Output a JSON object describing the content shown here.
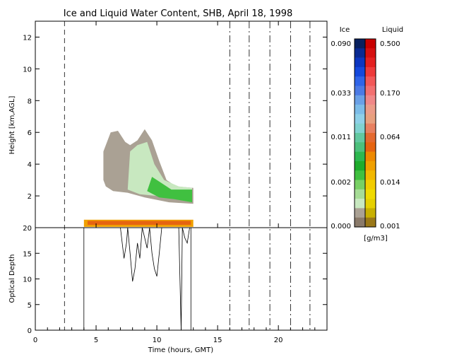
{
  "title": "Ice and Liquid Water Content, SHB, April 18, 1998",
  "top_panel": {
    "ylabel": "Height [km,AGL]",
    "yticks": [
      "2",
      "4",
      "6",
      "8",
      "10",
      "12"
    ]
  },
  "bottom_panel": {
    "ylabel": "Optical Depth",
    "yticks": [
      "0",
      "5",
      "10",
      "15",
      "20"
    ]
  },
  "xaxis": {
    "label": "Time (hours, GMT)",
    "ticks": [
      "0",
      "5",
      "10",
      "15",
      "20"
    ]
  },
  "colorbar": {
    "ice_header": "Ice",
    "liquid_header": "Liquid",
    "units": "[g/m3]",
    "ice_labels": [
      "0.090",
      "0.033",
      "0.011",
      "0.002",
      "0.000"
    ],
    "liquid_labels": [
      "0.500",
      "0.170",
      "0.064",
      "0.014",
      "0.001"
    ],
    "ice_colors": [
      "#08205e",
      "#0a2a92",
      "#0c36c0",
      "#1448dc",
      "#2f64e8",
      "#4c7ae4",
      "#6aa0e6",
      "#7cbce8",
      "#8ed0e8",
      "#80d2d0",
      "#62c8a0",
      "#4cc07c",
      "#2db850",
      "#1eac2c",
      "#40c040",
      "#78d064",
      "#a6dc96",
      "#c8e8c0",
      "#aaa194",
      "#8a7a6a"
    ],
    "liquid_colors": [
      "#c80000",
      "#d61010",
      "#e42020",
      "#ee3a3a",
      "#f25858",
      "#f27070",
      "#f08888",
      "#ec9c88",
      "#e8a07e",
      "#e88060",
      "#e46a30",
      "#e66410",
      "#ee8a00",
      "#f0a000",
      "#f2b800",
      "#f2cc00",
      "#f0da00",
      "#e6d000",
      "#c8b000",
      "#9a7818"
    ]
  },
  "chart_data": [
    {
      "type": "heatmap",
      "title": "Ice and Liquid Water Content, SHB, April 18, 1998",
      "xlabel": "Time (hours, GMT)",
      "ylabel": "Height [km,AGL]",
      "xlim": [
        0,
        24
      ],
      "ylim": [
        0,
        13
      ],
      "dashed_vertical_lines_hours": [
        2.4,
        16.0,
        17.6,
        19.3,
        21.0,
        22.6
      ],
      "cloud_layers": [
        {
          "name": "ice cloud",
          "time_start": 5.5,
          "time_end": 13.0,
          "base_km": 1.5,
          "top_km": 6.2
        },
        {
          "name": "liquid layer near surface",
          "time_start": 4.0,
          "time_end": 13.0,
          "base_km": 0.05,
          "top_km": 0.5
        }
      ]
    },
    {
      "type": "line",
      "xlabel": "Time (hours, GMT)",
      "ylabel": "Optical Depth",
      "xlim": [
        0,
        24
      ],
      "ylim": [
        0,
        20
      ],
      "x": [
        4.0,
        4.0,
        7.0,
        7.1,
        7.3,
        7.5,
        7.6,
        7.8,
        8.0,
        8.2,
        8.4,
        8.6,
        8.8,
        9.0,
        9.2,
        9.4,
        9.6,
        9.8,
        10.0,
        10.2,
        10.4,
        11.0,
        11.5,
        11.8,
        12.0,
        12.1,
        12.3,
        12.5,
        12.7,
        12.8,
        12.8
      ],
      "y": [
        0,
        20,
        20,
        18,
        14,
        17,
        20,
        15,
        9.5,
        12,
        17,
        14,
        20,
        18,
        16,
        20,
        15,
        12,
        10.5,
        15,
        20,
        20,
        20,
        20,
        0,
        20,
        18,
        17,
        20,
        20,
        0
      ]
    }
  ]
}
